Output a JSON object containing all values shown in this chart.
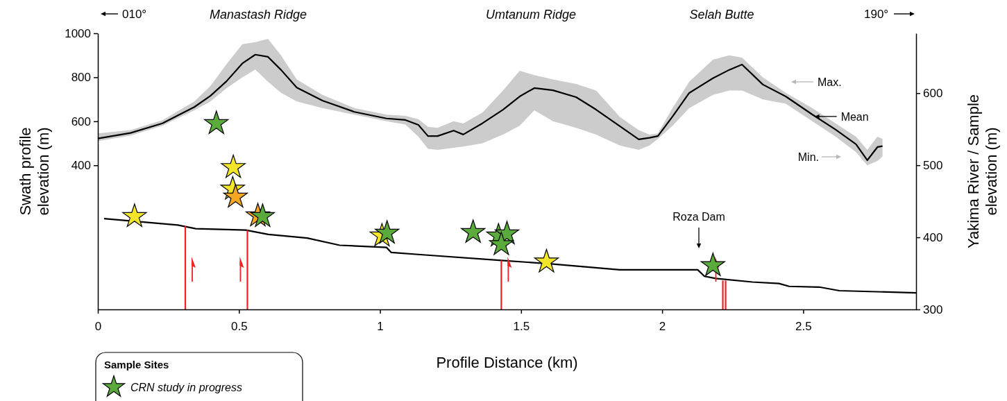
{
  "chart_data": {
    "type": "line",
    "xlabel": "Profile Distance (km)",
    "ylabel": "Swath profile elevation (m)",
    "y2label": "Yakima River / Sample elevation (m)",
    "legend_title": "Sample Sites",
    "legend": "bottom left",
    "xlim": [
      0,
      2.9
    ],
    "xticks": [
      0,
      0.5,
      1,
      1.5,
      2,
      2.5
    ],
    "ylim": [
      -255,
      1000
    ],
    "yticks": [
      400,
      600,
      800,
      1000
    ],
    "y2lim": [
      300,
      683
    ],
    "y2ticks": [
      300,
      400,
      500,
      600
    ],
    "annotations": [
      "010°",
      "Manastash Ridge",
      "Umtanum Ridge",
      "Selah Butte",
      "190°",
      "Max.",
      {
        "text": "Mean",
        "x": 2.54,
        "y": 622
      },
      "Min.",
      "Roza Dam"
    ],
    "series": [
      {
        "color": "#000000",
        "x": [
          0,
          0.116,
          0.229,
          0.342,
          0.399,
          0.456,
          0.512,
          0.558,
          0.603,
          0.649,
          0.705,
          0.796,
          0.909,
          1.023,
          1.09,
          1.136,
          1.17,
          1.204,
          1.261,
          1.295,
          1.363,
          1.436,
          1.495,
          1.547,
          1.613,
          1.695,
          1.766,
          1.85,
          1.917,
          1.955,
          1.985,
          2.037,
          2.096,
          2.18,
          2.238,
          2.283,
          2.357,
          2.438,
          2.532,
          2.615,
          2.687,
          2.727,
          2.763,
          2.781
        ],
        "values": [
          522,
          547,
          591,
          665,
          716,
          782,
          863,
          903,
          893,
          834,
          753,
          694,
          643,
          613,
          606,
          584,
          533,
          533,
          558,
          540,
          591,
          653,
          713,
          751,
          741,
          710,
          653,
          578,
          518,
          525,
          533,
          622,
          729,
          796,
          834,
          858,
          767,
          713,
          631,
          562,
          496,
          423,
          483,
          487
        ],
        "lower": [
          510,
          535,
          580,
          650,
          690,
          750,
          800,
          835,
          780,
          730,
          690,
          660,
          630,
          600,
          585,
          530,
          475,
          470,
          480,
          485,
          500,
          540,
          580,
          650,
          600,
          570,
          540,
          490,
          470,
          490,
          520,
          580,
          660,
          720,
          740,
          740,
          700,
          680,
          600,
          530,
          460,
          400,
          420,
          440
        ],
        "upper": [
          545,
          560,
          605,
          690,
          760,
          860,
          950,
          960,
          975,
          900,
          790,
          720,
          660,
          630,
          625,
          610,
          575,
          570,
          600,
          590,
          640,
          740,
          830,
          810,
          790,
          770,
          740,
          620,
          560,
          540,
          545,
          660,
          780,
          880,
          900,
          890,
          800,
          730,
          660,
          590,
          530,
          470,
          530,
          520
        ]
      },
      {
        "axis": "y2",
        "color": "#000000",
        "x": [
          0.022,
          0.283,
          0.347,
          0.524,
          0.604,
          0.742,
          0.857,
          1.023,
          1.04,
          1.143,
          1.43,
          1.613,
          1.85,
          2.126,
          2.15,
          2.19,
          2.32,
          2.414,
          2.45,
          2.557,
          2.628,
          2.9
        ],
        "values": [
          426,
          417,
          412,
          410,
          404,
          399,
          389,
          386,
          379,
          376,
          368,
          363,
          355,
          355,
          346,
          343,
          338,
          336,
          332,
          331,
          326,
          323
        ]
      },
      {
        "axis": "y2",
        "color": "#ee2222",
        "x": [
          0.31,
          0.31
        ],
        "values": [
          300,
          416
        ]
      },
      {
        "axis": "y2",
        "color": "#ee2222",
        "x": [
          0.53,
          0.53
        ],
        "values": [
          300,
          410
        ]
      },
      {
        "axis": "y2",
        "color": "#ee2222",
        "x": [
          1.43,
          1.43
        ],
        "values": [
          300,
          368
        ]
      },
      {
        "axis": "y2",
        "color": "#ee2222",
        "x": [
          2.215,
          2.215
        ],
        "values": [
          300,
          340
        ]
      },
      {
        "axis": "y2",
        "color": "#ee2222",
        "x": [
          2.225,
          2.225
        ],
        "values": [
          300,
          340
        ]
      },
      {
        "type": "scatter",
        "axis": "y2",
        "marker": "star",
        "color": "#f2e52a",
        "x": [
          0.13,
          0.48,
          0.478,
          1.007,
          1.59
        ],
        "values": [
          429,
          497,
          467,
          402,
          366
        ]
      },
      {
        "type": "scatter",
        "axis": "y2",
        "marker": "star",
        "color": "#f5a623",
        "x": [
          0.488,
          0.567
        ],
        "values": [
          456,
          430
        ]
      },
      {
        "type": "scatter",
        "axis": "y2",
        "marker": "star",
        "name": "CRN study in progress",
        "color": "#5aaa3c",
        "x": [
          0.42,
          0.584,
          1.025,
          1.33,
          1.42,
          1.45,
          1.43,
          2.18
        ],
        "values": [
          558,
          429,
          406,
          407,
          402,
          405,
          390,
          361
        ]
      }
    ]
  }
}
